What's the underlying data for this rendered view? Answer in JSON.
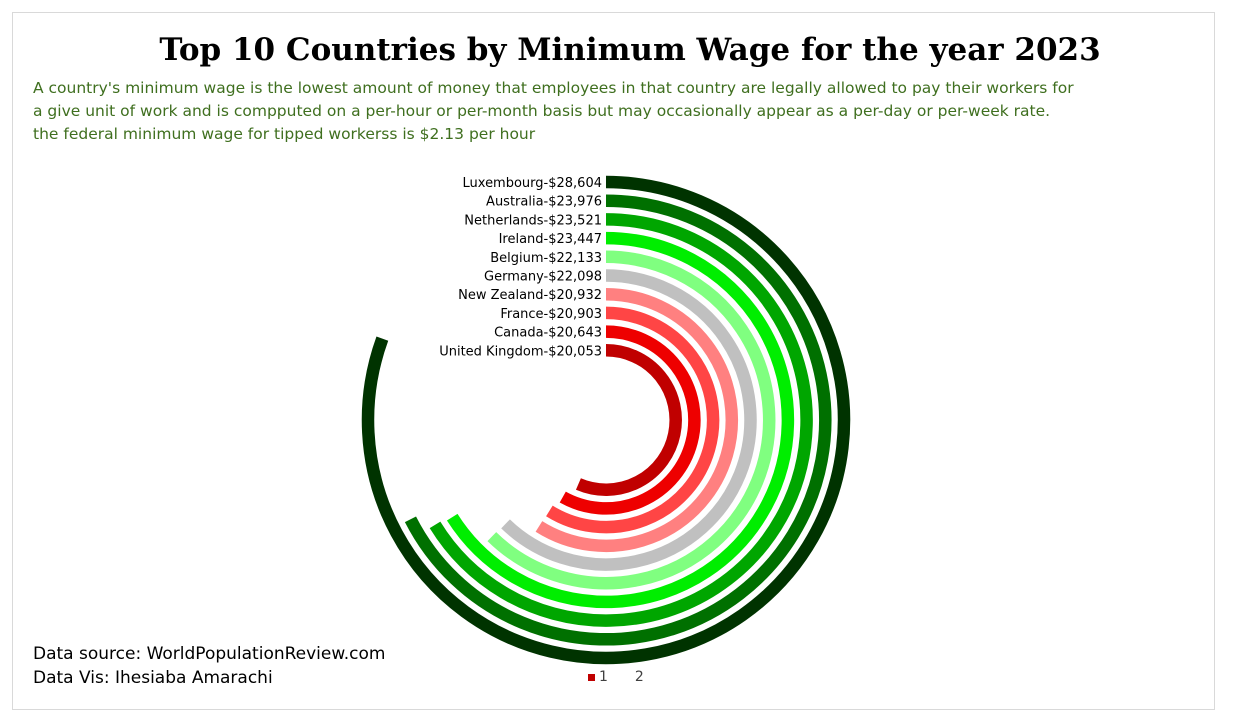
{
  "title": "Top 10 Countries by Minimum Wage for the year 2023",
  "subtitle_lines": [
    "A country's minimum wage is the lowest amount of money that employees in that country are legally allowed to pay their workers for",
    "a give unit of work and is compputed on a per-hour or per-month basis but may occasionally appear as a per-day or per-week rate.",
    "the federal minimum wage for tipped workerss is $2.13 per hour"
  ],
  "source_lines": [
    "Data source: WorldPopulationReview.com",
    "Data Vis: Ihesiaba Amarachi"
  ],
  "chart_data": {
    "type": "radial-bar",
    "categories": [
      "Luxembourg",
      "Australia",
      "Netherlands",
      "Ireland",
      "Belgium",
      "Germany",
      "New Zealand",
      "France",
      "Canada",
      "United Kingdom"
    ],
    "labels": [
      "Luxembourg-$28,604",
      "Australia-$23,976",
      "Netherlands-$23,521",
      "Ireland-$23,447",
      "Belgium-$22,133",
      "Germany-$22,098",
      "New Zealand-$20,932",
      "France-$20,903",
      "Canada-$20,643",
      "United Kingdom-$20,053"
    ],
    "values": [
      28604,
      23976,
      23521,
      23447,
      22133,
      22098,
      20932,
      20903,
      20643,
      20053
    ],
    "colors": [
      "#003300",
      "#007000",
      "#00a600",
      "#00ee00",
      "#80ff80",
      "#c0c0c0",
      "#ff8080",
      "#ff4545",
      "#ee0000",
      "#c00000"
    ],
    "legend": [
      {
        "label": "1",
        "color": "#c00000"
      },
      {
        "label": "2",
        "color": "#ffffff"
      }
    ]
  }
}
